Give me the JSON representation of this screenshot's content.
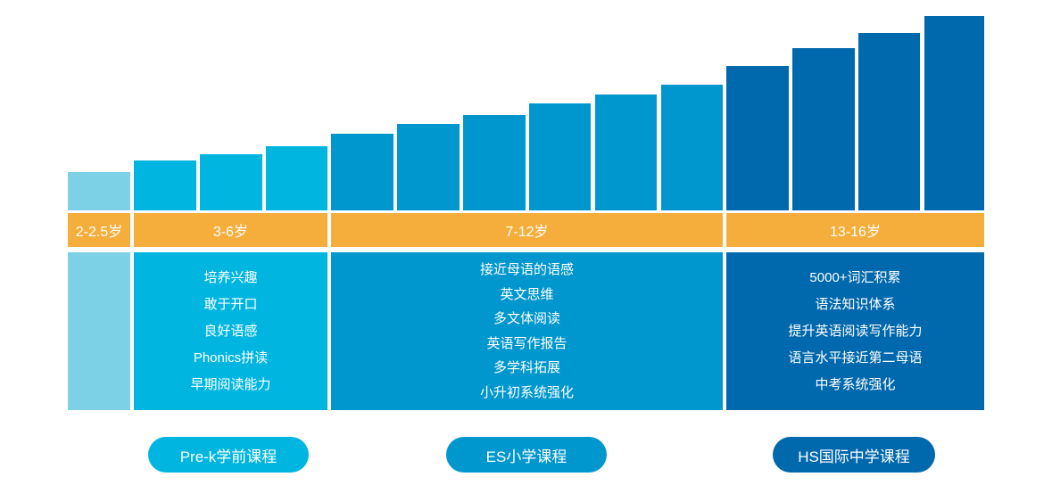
{
  "colors": {
    "toddler": "#7dd1e6",
    "prek": "#00b6e1",
    "es": "#0097ce",
    "hs": "#0068ad",
    "age_band": "#f5ae3c"
  },
  "age_labels": {
    "toddler": "2-2.5岁",
    "prek": "3-6岁",
    "es": "7-12岁",
    "hs": "13-16岁"
  },
  "panels": {
    "prek": [
      "培养兴趣",
      "敢于开口",
      "良好语感",
      "Phonics拼读",
      "早期阅读能力"
    ],
    "es": [
      "接近母语的语感",
      "英文思维",
      "多文体阅读",
      "英语写作报告",
      "多学科拓展",
      "小升初系统强化"
    ],
    "hs": [
      "5000+词汇积累",
      "语法知识体系",
      "提升英语阅读写作能力",
      "语言水平接近第二母语",
      "中考系统强化"
    ]
  },
  "courses": {
    "prek": "Pre-k学前课程",
    "es": "ES小学课程",
    "hs": "HS国际中学课程"
  },
  "staircase_levels": [
    1,
    2,
    3,
    4,
    5,
    6,
    7,
    8,
    9,
    10,
    11,
    12,
    13,
    14
  ]
}
